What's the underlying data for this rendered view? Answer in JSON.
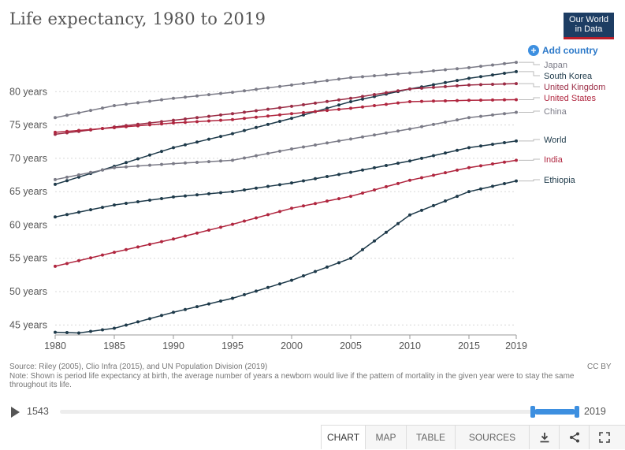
{
  "header": {
    "title": "Life expectancy, 1980 to 2019",
    "logo_line1": "Our World",
    "logo_line2": "in Data",
    "add_country": "Add country"
  },
  "chart_data": {
    "type": "line",
    "title": "Life expectancy, 1980 to 2019",
    "xlabel": "",
    "ylabel": "",
    "xlim": [
      1980,
      2019
    ],
    "ylim": [
      43.5,
      85
    ],
    "x_ticks": [
      "1980",
      "1985",
      "1990",
      "1995",
      "2000",
      "2005",
      "2010",
      "2015",
      "2019"
    ],
    "y_ticks": [
      "45 years",
      "50 years",
      "55 years",
      "60 years",
      "65 years",
      "70 years",
      "75 years",
      "80 years"
    ],
    "y_tick_values": [
      45,
      50,
      55,
      60,
      65,
      70,
      75,
      80
    ],
    "grid": "horizontal dotted",
    "legend": "right, labels at line ends",
    "series": [
      {
        "name": "Japan",
        "color": "#7b7b87",
        "anchor": [
          1980,
          76.1,
          2019,
          84.4
        ],
        "values": [
          [
            1980,
            76.1
          ],
          [
            1985,
            77.9
          ],
          [
            1990,
            79.0
          ],
          [
            1995,
            79.9
          ],
          [
            2000,
            81.0
          ],
          [
            2005,
            82.1
          ],
          [
            2010,
            82.8
          ],
          [
            2015,
            83.6
          ],
          [
            2019,
            84.4
          ]
        ]
      },
      {
        "name": "South Korea",
        "color": "#1e3a4a",
        "anchor": [
          1980,
          66.1,
          2019,
          83.0
        ],
        "values": [
          [
            1980,
            66.1
          ],
          [
            1985,
            68.8
          ],
          [
            1990,
            71.6
          ],
          [
            1995,
            73.7
          ],
          [
            2000,
            76.0
          ],
          [
            2005,
            78.5
          ],
          [
            2010,
            80.4
          ],
          [
            2015,
            82.0
          ],
          [
            2019,
            83.0
          ]
        ]
      },
      {
        "name": "United Kingdom",
        "color": "#9b2c45",
        "anchor": [
          1980,
          73.6,
          2019,
          81.2
        ],
        "values": [
          [
            1980,
            73.6
          ],
          [
            1985,
            74.7
          ],
          [
            1990,
            75.7
          ],
          [
            1995,
            76.7
          ],
          [
            2000,
            77.8
          ],
          [
            2005,
            79.0
          ],
          [
            2010,
            80.4
          ],
          [
            2015,
            81.0
          ],
          [
            2019,
            81.2
          ]
        ]
      },
      {
        "name": "United States",
        "color": "#b0263f",
        "anchor": [
          1980,
          73.9,
          2019,
          78.8
        ],
        "values": [
          [
            1980,
            73.9
          ],
          [
            1985,
            74.6
          ],
          [
            1990,
            75.3
          ],
          [
            1995,
            75.8
          ],
          [
            2000,
            76.7
          ],
          [
            2005,
            77.5
          ],
          [
            2010,
            78.5
          ],
          [
            2015,
            78.7
          ],
          [
            2019,
            78.8
          ]
        ]
      },
      {
        "name": "China",
        "color": "#7b7b87",
        "anchor": [
          1980,
          66.8,
          2019,
          76.9
        ],
        "values": [
          [
            1980,
            66.8
          ],
          [
            1985,
            68.6
          ],
          [
            1990,
            69.2
          ],
          [
            1995,
            69.7
          ],
          [
            2000,
            71.4
          ],
          [
            2005,
            72.9
          ],
          [
            2010,
            74.4
          ],
          [
            2015,
            76.1
          ],
          [
            2019,
            76.9
          ]
        ]
      },
      {
        "name": "World",
        "color": "#1e3a4a",
        "anchor": [
          1980,
          61.2,
          2019,
          72.6
        ],
        "values": [
          [
            1980,
            61.2
          ],
          [
            1985,
            63.0
          ],
          [
            1990,
            64.2
          ],
          [
            1995,
            65.0
          ],
          [
            2000,
            66.3
          ],
          [
            2005,
            67.9
          ],
          [
            2010,
            69.6
          ],
          [
            2015,
            71.6
          ],
          [
            2019,
            72.6
          ]
        ]
      },
      {
        "name": "India",
        "color": "#b0263f",
        "anchor": [
          1980,
          53.8,
          2019,
          69.7
        ],
        "values": [
          [
            1980,
            53.8
          ],
          [
            1985,
            55.9
          ],
          [
            1990,
            57.9
          ],
          [
            1995,
            60.1
          ],
          [
            2000,
            62.5
          ],
          [
            2005,
            64.3
          ],
          [
            2010,
            66.7
          ],
          [
            2015,
            68.6
          ],
          [
            2019,
            69.7
          ]
        ]
      },
      {
        "name": "Ethiopia",
        "color": "#1e3a4a",
        "anchor": [
          1980,
          43.9,
          2019,
          66.6
        ],
        "values": [
          [
            1980,
            43.9
          ],
          [
            1982,
            43.8
          ],
          [
            1985,
            44.5
          ],
          [
            1990,
            46.9
          ],
          [
            1995,
            49.0
          ],
          [
            2000,
            51.7
          ],
          [
            2005,
            55.0
          ],
          [
            2010,
            61.5
          ],
          [
            2015,
            65.0
          ],
          [
            2019,
            66.6
          ]
        ]
      }
    ]
  },
  "footer": {
    "source": "Source: Riley (2005), Clio Infra (2015), and UN Population Division (2019)",
    "note": "Note: Shown is period life expectancy at birth, the average number of years a newborn would live if the pattern of mortality in the given year were to stay the same throughout its life.",
    "license": "CC BY"
  },
  "timeline": {
    "start_year": "1543",
    "end_year": "2019"
  },
  "tabs": [
    "CHART",
    "MAP",
    "TABLE",
    "SOURCES"
  ],
  "icons": [
    "download-icon",
    "share-icon",
    "fullscreen-icon"
  ]
}
